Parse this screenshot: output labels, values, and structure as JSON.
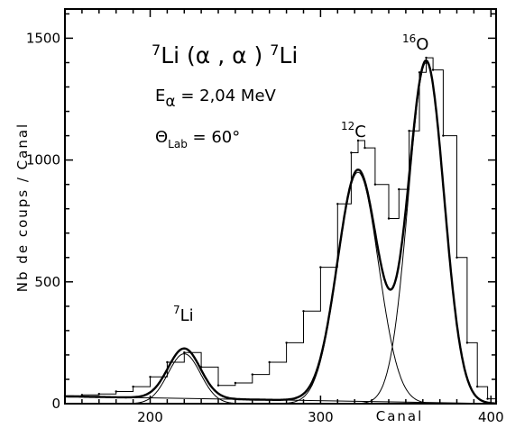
{
  "chart_data": {
    "type": "line",
    "xlabel": "Canal",
    "ylabel": "Nb de coups / Canal",
    "xlim": [
      150,
      403
    ],
    "ylim": [
      0,
      1620
    ],
    "xticks": [
      200,
      300,
      400
    ],
    "yticks": [
      0,
      500,
      1000,
      1500
    ],
    "grid": false,
    "reaction": {
      "sup1": "7",
      "base1": "Li (",
      "alpha1": "α",
      "comma": " , ",
      "alpha2": "α",
      "close": " ) ",
      "sup2": "7",
      "base2": "Li"
    },
    "energy": {
      "base": "E",
      "sub": "α",
      "rest": " =  2,04 MeV"
    },
    "angle": {
      "base": "Θ",
      "sub": "Lab",
      "rest": " =  60°"
    },
    "peaks": [
      {
        "sup": "7",
        "base": "Li",
        "x": 220,
        "height": 205,
        "sigma": 9.5
      },
      {
        "sup": "12",
        "base": "C",
        "x": 322,
        "height": 950,
        "sigma": 12
      },
      {
        "sup": "16",
        "base": "O",
        "x": 362,
        "height": 1400,
        "sigma": 10.5
      }
    ],
    "background": {
      "x": [
        150,
        403
      ],
      "y": [
        30,
        0
      ]
    },
    "spectrum": [
      {
        "x": 150,
        "y": 32
      },
      {
        "x": 160,
        "y": 36
      },
      {
        "x": 170,
        "y": 40
      },
      {
        "x": 180,
        "y": 50
      },
      {
        "x": 190,
        "y": 70
      },
      {
        "x": 200,
        "y": 110
      },
      {
        "x": 210,
        "y": 170
      },
      {
        "x": 220,
        "y": 210
      },
      {
        "x": 230,
        "y": 150
      },
      {
        "x": 240,
        "y": 75
      },
      {
        "x": 250,
        "y": 85
      },
      {
        "x": 260,
        "y": 120
      },
      {
        "x": 270,
        "y": 170
      },
      {
        "x": 280,
        "y": 250
      },
      {
        "x": 290,
        "y": 380
      },
      {
        "x": 300,
        "y": 560
      },
      {
        "x": 310,
        "y": 820
      },
      {
        "x": 318,
        "y": 1030
      },
      {
        "x": 322,
        "y": 1080
      },
      {
        "x": 326,
        "y": 1050
      },
      {
        "x": 332,
        "y": 900
      },
      {
        "x": 340,
        "y": 760
      },
      {
        "x": 346,
        "y": 880
      },
      {
        "x": 352,
        "y": 1120
      },
      {
        "x": 358,
        "y": 1360
      },
      {
        "x": 362,
        "y": 1420
      },
      {
        "x": 366,
        "y": 1370
      },
      {
        "x": 372,
        "y": 1100
      },
      {
        "x": 380,
        "y": 600
      },
      {
        "x": 386,
        "y": 250
      },
      {
        "x": 392,
        "y": 70
      },
      {
        "x": 398,
        "y": 20
      },
      {
        "x": 403,
        "y": 10
      }
    ]
  }
}
